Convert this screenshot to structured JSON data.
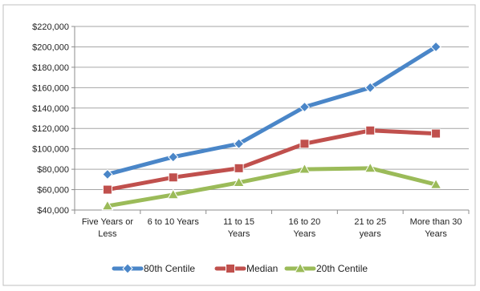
{
  "chart_data": {
    "type": "line",
    "title": "",
    "xlabel": "",
    "ylabel": "",
    "categories": [
      [
        "Five Years or",
        "Less"
      ],
      [
        "6 to 10 Years"
      ],
      [
        "11 to 15",
        "Years"
      ],
      [
        "16 to 20",
        "Years"
      ],
      [
        "21 to 25",
        "years"
      ],
      [
        "More than 30",
        "Years"
      ]
    ],
    "ylim": [
      40000,
      220000
    ],
    "yticks": [
      {
        "value": 220000,
        "label": "$220,000"
      },
      {
        "value": 200000,
        "label": "$200,000"
      },
      {
        "value": 180000,
        "label": "$180,000"
      },
      {
        "value": 160000,
        "label": "$160,000"
      },
      {
        "value": 140000,
        "label": "$140,000"
      },
      {
        "value": 120000,
        "label": "$120,000"
      },
      {
        "value": 100000,
        "label": "$100,000"
      },
      {
        "value": 80000,
        "label": "$80,000"
      },
      {
        "value": 60000,
        "label": "$60,000"
      },
      {
        "value": 40000,
        "label": "$40,000"
      }
    ],
    "grid": true,
    "legend_position": "bottom",
    "series": [
      {
        "name": "80th Centile",
        "color": "#4a86c8",
        "marker": "diamond",
        "values": [
          75000,
          92000,
          105000,
          141000,
          160000,
          200000
        ]
      },
      {
        "name": "Median",
        "color": "#c0504d",
        "marker": "square",
        "values": [
          60000,
          72000,
          81000,
          105000,
          118000,
          115000
        ]
      },
      {
        "name": "20th Centile",
        "color": "#9bbb59",
        "marker": "triangle",
        "values": [
          44000,
          55000,
          67000,
          80000,
          81000,
          65000
        ]
      }
    ]
  }
}
